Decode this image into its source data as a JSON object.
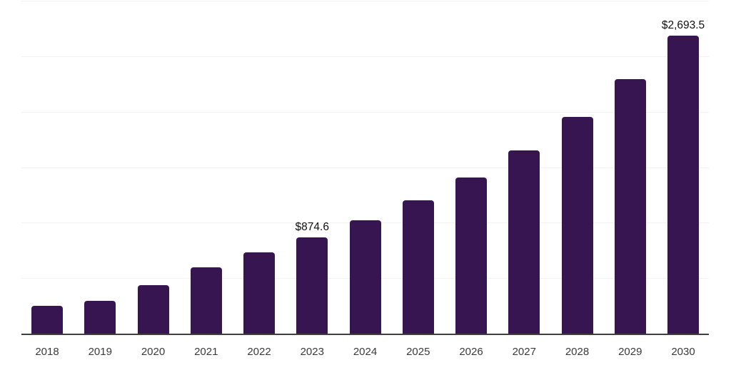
{
  "chart_data": {
    "type": "bar",
    "title": "",
    "xlabel": "",
    "ylabel": "",
    "categories": [
      "2018",
      "2019",
      "2020",
      "2021",
      "2022",
      "2023",
      "2024",
      "2025",
      "2026",
      "2027",
      "2028",
      "2029",
      "2030"
    ],
    "values": [
      255,
      304,
      441,
      606,
      739,
      874.6,
      1026,
      1208,
      1411,
      1658,
      1957,
      2300,
      2693.5
    ],
    "data_labels": {
      "2023": "$874.6",
      "2030": "$2,693.5"
    },
    "ylim": [
      0,
      3000
    ],
    "grid_step": 500,
    "grid": "horizontal-only",
    "y_axis_tick_labels": "none",
    "legend": "none"
  },
  "colors": {
    "bar": "#371550",
    "gridline": "#f2f2f2",
    "axis_line": "#3f3f3f",
    "background": "#ffffff",
    "data_label_text": "#0f0f0f",
    "tick_label_text": "#3a3a3a"
  }
}
